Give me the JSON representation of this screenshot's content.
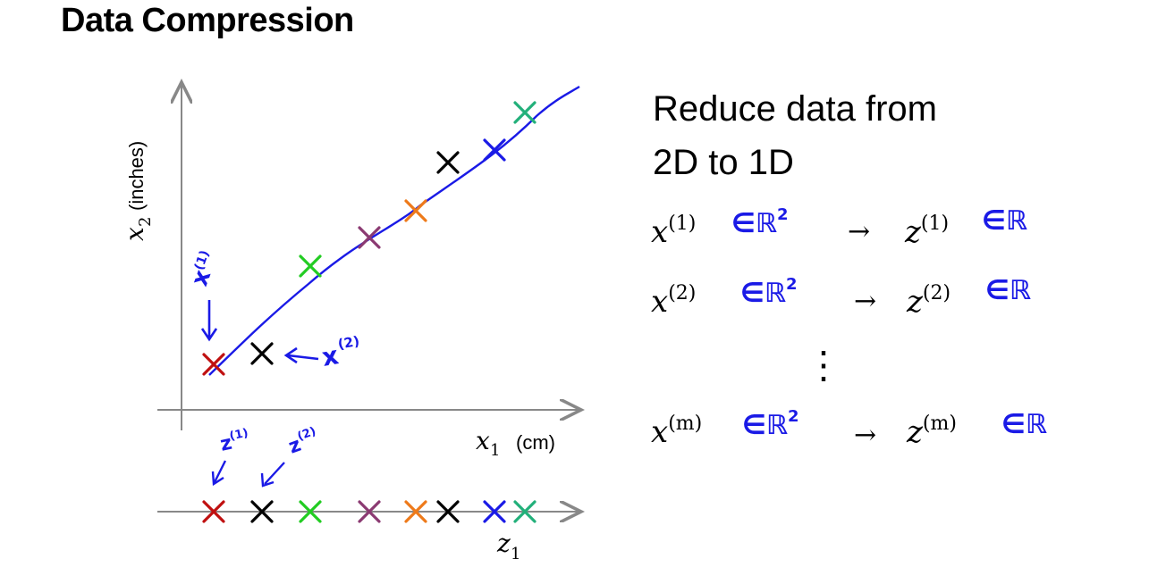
{
  "title": "Data Compression",
  "description": {
    "line1": "Reduce data from",
    "line2": "2D to 1D"
  },
  "axes": {
    "x_label_var": "x",
    "x_label_sub": "1",
    "x_label_unit": "(cm)",
    "y_label_var": "x",
    "y_label_sub": "2",
    "y_label_unit": "(inches)",
    "z_label_var": "z",
    "z_label_sub": "1"
  },
  "handwritten": {
    "x1": "x",
    "x1_sup": "(1)",
    "x2": "x",
    "x2_sup": "(2)",
    "z1": "z",
    "z1_sup": "(1)",
    "z2": "z",
    "z2_sup": "(2)"
  },
  "mappings": [
    {
      "x": "x",
      "x_sup": "(1)",
      "x_hand": "∈ℝ",
      "x_hand_sup": "2",
      "z": "z",
      "z_sup": "(1)",
      "z_hand": "∈ℝ"
    },
    {
      "x": "x",
      "x_sup": "(2)",
      "x_hand": "∈ℝ",
      "x_hand_sup": "2",
      "z": "z",
      "z_sup": "(2)",
      "z_hand": "∈ℝ"
    },
    {
      "x": "x",
      "x_sup": "(m)",
      "x_hand": "∈ℝ",
      "x_hand_sup": "2",
      "z": "z",
      "z_sup": "(m)",
      "z_hand": "∈ℝ"
    }
  ],
  "arrow_symbol": "→",
  "vdots": "⋮",
  "colors": {
    "line": "#1a1ae6",
    "red": "#c01010",
    "black": "#000000",
    "green": "#22cc22",
    "purple": "#8b3a72",
    "orange": "#ee7a1a",
    "blue": "#1a1ae6",
    "teal": "#22b07a"
  },
  "points": [
    {
      "color": "red"
    },
    {
      "color": "black"
    },
    {
      "color": "green"
    },
    {
      "color": "purple"
    },
    {
      "color": "orange"
    },
    {
      "color": "black"
    },
    {
      "color": "blue"
    },
    {
      "color": "teal"
    }
  ]
}
